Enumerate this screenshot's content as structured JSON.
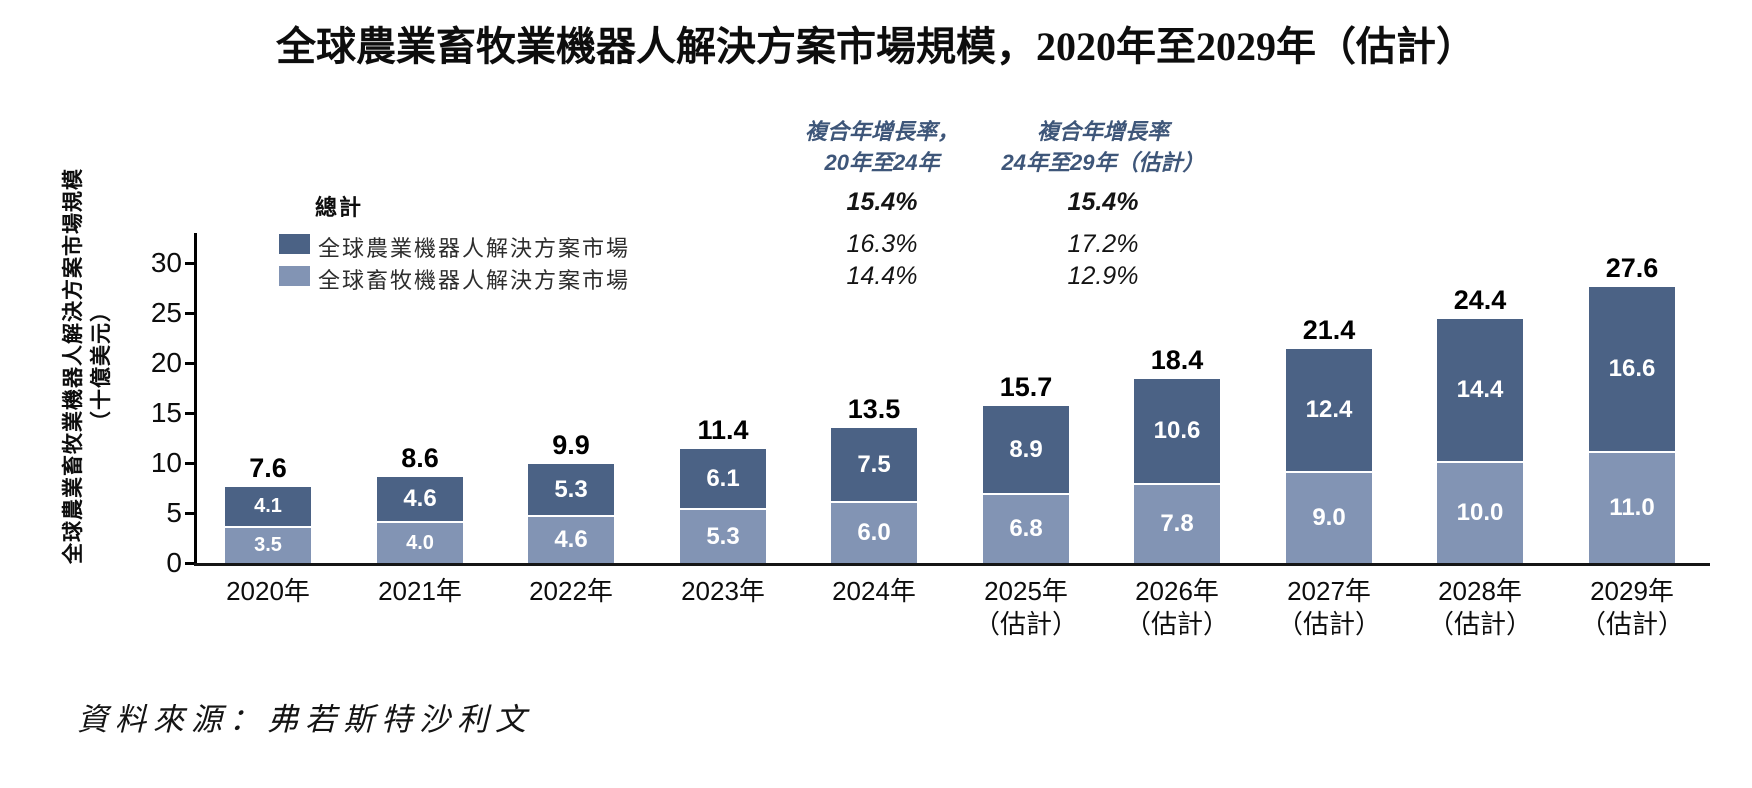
{
  "title": "全球農業畜牧業機器人解決方案市場規模，2020年至2029年（估計）",
  "source": "資料來源：弗若斯特沙利文",
  "colors": {
    "agriculture_series": "#4b6285",
    "livestock_series": "#8294b4",
    "cagr_header_text": "#3e5679",
    "axis": "#000000"
  },
  "cagr_table": {
    "col1": {
      "line1": "複合年增長率，",
      "line2": "20年至24年"
    },
    "col2": {
      "line1": "複合年增長率",
      "line2": "24年至29年（估計）"
    },
    "rows": [
      {
        "label": "總計",
        "col1": "15.4%",
        "col2": "15.4%"
      },
      {
        "label": "全球農業機器人解決方案市場",
        "col1": "16.3%",
        "col2": "17.2%"
      },
      {
        "label": "全球畜牧機器人解決方案市場",
        "col1": "14.4%",
        "col2": "12.9%"
      }
    ]
  },
  "chart_data": {
    "type": "bar",
    "stacked": true,
    "title": "全球農業畜牧業機器人解決方案市場規模，2020年至2029年（估計）",
    "ylabel": "全球農業畜牧業機器人解決方案市場規模",
    "ylabel_unit": "（十億美元）",
    "ylim": [
      0,
      30
    ],
    "yticks": [
      0,
      5,
      10,
      15,
      20,
      25,
      30
    ],
    "grid": false,
    "legend_position": "top-left",
    "categories": [
      "2020年",
      "2021年",
      "2022年",
      "2023年",
      "2024年",
      "2025年",
      "2026年",
      "2027年",
      "2028年",
      "2029年"
    ],
    "category_sublabels": [
      "",
      "",
      "",
      "",
      "",
      "（估計）",
      "（估計）",
      "（估計）",
      "（估計）",
      "（估計）"
    ],
    "series": [
      {
        "name": "全球農業機器人解決方案市場",
        "color": "#4b6285",
        "values": [
          4.1,
          4.6,
          5.3,
          6.1,
          7.5,
          8.9,
          10.6,
          12.4,
          14.4,
          16.6
        ]
      },
      {
        "name": "全球畜牧機器人解決方案市場",
        "color": "#8294b4",
        "values": [
          3.5,
          4.0,
          4.6,
          5.3,
          6.0,
          6.8,
          7.8,
          9.0,
          10.0,
          11.0
        ]
      }
    ],
    "totals": [
      7.6,
      8.6,
      9.9,
      11.4,
      13.5,
      15.7,
      18.4,
      21.4,
      24.4,
      27.6
    ]
  }
}
